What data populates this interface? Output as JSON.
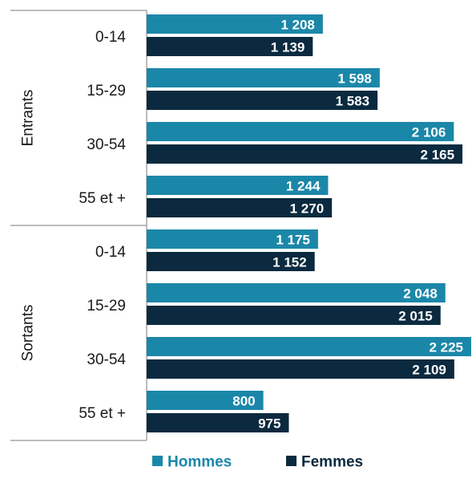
{
  "chart_data": {
    "type": "bar",
    "orientation": "horizontal",
    "groups": [
      {
        "label": "Entrants",
        "categories": [
          "0-14",
          "15-29",
          "30-54",
          "55 et +"
        ]
      },
      {
        "label": "Sortants",
        "categories": [
          "0-14",
          "15-29",
          "30-54",
          "55 et +"
        ]
      }
    ],
    "series": [
      {
        "name": "Hommes",
        "color": "#1b87a8",
        "values": [
          1208,
          1598,
          2106,
          1244,
          1175,
          2048,
          2225,
          800
        ],
        "labels": [
          "1 208",
          "1 598",
          "2 106",
          "1 244",
          "1 175",
          "2 048",
          "2 225",
          "800"
        ]
      },
      {
        "name": "Femmes",
        "color": "#0b2a3f",
        "values": [
          1139,
          1583,
          2165,
          1270,
          1152,
          2015,
          2109,
          975
        ],
        "labels": [
          "1 139",
          "1 583",
          "2 165",
          "1 270",
          "1 152",
          "2 015",
          "2 109",
          "975"
        ]
      }
    ],
    "xlim": [
      0,
      2225
    ],
    "legend_position": "bottom",
    "grid": false,
    "axis_color": "#a6a6a6"
  }
}
